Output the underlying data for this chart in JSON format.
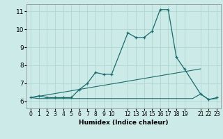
{
  "xlabel": "Humidex (Indice chaleur)",
  "background_color": "#cceae7",
  "grid_color": "#aad4d0",
  "line_color": "#1a6b6b",
  "xlim": [
    -0.5,
    23.5
  ],
  "ylim": [
    5.6,
    11.4
  ],
  "yticks": [
    6,
    7,
    8,
    9,
    10,
    11
  ],
  "xtick_positions": [
    0,
    1,
    2,
    3,
    4,
    5,
    6,
    7,
    8,
    9,
    10,
    12,
    13,
    14,
    15,
    16,
    17,
    18,
    19,
    21,
    22,
    23
  ],
  "series1_x": [
    0,
    1,
    2,
    3,
    4,
    5,
    6,
    7,
    8,
    9,
    10,
    12,
    13,
    14,
    15,
    16,
    17,
    18,
    19,
    21,
    22,
    23
  ],
  "series1_y": [
    6.2,
    6.3,
    6.2,
    6.2,
    6.2,
    6.2,
    6.65,
    7.0,
    7.6,
    7.5,
    7.5,
    9.8,
    9.55,
    9.55,
    9.9,
    11.1,
    11.1,
    8.45,
    7.8,
    6.4,
    6.1,
    6.2
  ],
  "series2_x": [
    0,
    1,
    2,
    3,
    4,
    5,
    6,
    7,
    8,
    9,
    10,
    11,
    12,
    13,
    14,
    15,
    16,
    17,
    18,
    19,
    20,
    21,
    22,
    23
  ],
  "series2_y": [
    6.2,
    6.15,
    6.15,
    6.15,
    6.15,
    6.15,
    6.15,
    6.15,
    6.15,
    6.15,
    6.15,
    6.15,
    6.15,
    6.15,
    6.15,
    6.15,
    6.15,
    6.15,
    6.15,
    6.15,
    6.15,
    6.4,
    6.1,
    6.15
  ],
  "series3_x": [
    0,
    21
  ],
  "series3_y": [
    6.2,
    7.8
  ]
}
